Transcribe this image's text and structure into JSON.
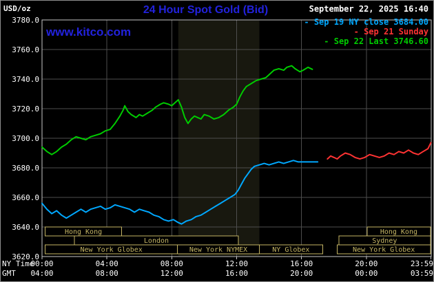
{
  "header": {
    "unit_label": "USD/oz",
    "title": "24 Hour Spot Gold (Bid)",
    "datetime": "September 22, 2025 16:40",
    "watermark": "www.kitco.com"
  },
  "legend": [
    {
      "marker": "-",
      "label": "Sep 19 NY close 3684.00",
      "color": "#00a8ff"
    },
    {
      "marker": "-",
      "label": "Sep 21 Sunday",
      "color": "#ff3333"
    },
    {
      "marker": "-",
      "label": "Sep 22 Last 3746.60",
      "color": "#00cc00"
    }
  ],
  "colors": {
    "background": "#000000",
    "title": "#2222dd",
    "watermark": "#2222dd",
    "grid": "#4e4e4e",
    "plot_border": "#c8c8c8",
    "axis_text": "#ffffff",
    "session_box": "#c6b665",
    "shaded_band": "#18180f"
  },
  "sessions": {
    "rows": [
      [
        {
          "label": "Hong Kong",
          "start": 0.2,
          "end": 4.9
        },
        {
          "label": "Hong Kong",
          "start": 20.05,
          "end": 23.95
        }
      ],
      [
        {
          "label": "London",
          "start": 2.0,
          "end": 12.1
        },
        {
          "label": "Sydney",
          "start": 18.3,
          "end": 23.95
        }
      ],
      [
        {
          "label": "New York Globex",
          "start": 0.2,
          "end": 8.35
        },
        {
          "label": "New York NYMEX",
          "start": 8.35,
          "end": 13.4
        },
        {
          "label": "NY Globex",
          "start": 13.4,
          "end": 17.3
        },
        {
          "label": "New York Globex",
          "start": 18.2,
          "end": 23.95
        }
      ]
    ]
  },
  "chart_data": {
    "type": "line",
    "title": "24 Hour Spot Gold (Bid)",
    "ylabel": "USD/oz",
    "ylim": [
      3620,
      3780
    ],
    "xlim_hours": [
      0,
      24
    ],
    "grid": true,
    "y_ticks": [
      3780,
      3760,
      3740,
      3720,
      3700,
      3680,
      3660,
      3640,
      3620
    ],
    "shaded_band_hours": [
      8.4,
      13.4
    ],
    "x_axis": {
      "ny_label": "NY Time",
      "gmt_label": "GMT",
      "tick_hours": [
        0,
        4,
        8,
        12,
        16,
        20,
        23.983
      ],
      "ny_tick_labels": [
        "00:00",
        "04:00",
        "08:00",
        "12:00",
        "16:00",
        "20:00",
        "23:59"
      ],
      "gmt_tick_labels": [
        "04:00",
        "08:00",
        "12:00",
        "16:00",
        "20:00",
        "00:00",
        "03:59"
      ]
    },
    "series": [
      {
        "id": "sep19",
        "name": "Sep 19 NY close 3684.00",
        "color": "#00a8ff",
        "points": [
          [
            0,
            3656
          ],
          [
            0.3,
            3652
          ],
          [
            0.6,
            3649
          ],
          [
            0.9,
            3651
          ],
          [
            1.2,
            3648
          ],
          [
            1.5,
            3646
          ],
          [
            1.8,
            3648
          ],
          [
            2.1,
            3650
          ],
          [
            2.4,
            3652
          ],
          [
            2.7,
            3650
          ],
          [
            3,
            3652
          ],
          [
            3.3,
            3653
          ],
          [
            3.6,
            3654
          ],
          [
            3.9,
            3652
          ],
          [
            4.2,
            3653
          ],
          [
            4.5,
            3655
          ],
          [
            4.8,
            3654
          ],
          [
            5.1,
            3653
          ],
          [
            5.4,
            3652
          ],
          [
            5.7,
            3650
          ],
          [
            6,
            3652
          ],
          [
            6.3,
            3651
          ],
          [
            6.6,
            3650
          ],
          [
            6.9,
            3648
          ],
          [
            7.2,
            3647
          ],
          [
            7.5,
            3645
          ],
          [
            7.8,
            3644
          ],
          [
            8.1,
            3645
          ],
          [
            8.4,
            3643
          ],
          [
            8.6,
            3642
          ],
          [
            8.9,
            3644
          ],
          [
            9.2,
            3645
          ],
          [
            9.5,
            3647
          ],
          [
            9.8,
            3648
          ],
          [
            10.1,
            3650
          ],
          [
            10.4,
            3652
          ],
          [
            10.7,
            3654
          ],
          [
            11,
            3656
          ],
          [
            11.3,
            3658
          ],
          [
            11.6,
            3660
          ],
          [
            11.9,
            3662
          ],
          [
            12.1,
            3665
          ],
          [
            12.3,
            3669
          ],
          [
            12.5,
            3673
          ],
          [
            12.7,
            3676
          ],
          [
            12.9,
            3679
          ],
          [
            13.1,
            3681
          ],
          [
            13.4,
            3682
          ],
          [
            13.7,
            3683
          ],
          [
            14,
            3682
          ],
          [
            14.3,
            3683
          ],
          [
            14.6,
            3684
          ],
          [
            14.9,
            3683
          ],
          [
            15.2,
            3684
          ],
          [
            15.5,
            3685
          ],
          [
            15.8,
            3684
          ],
          [
            16.1,
            3684
          ],
          [
            16.5,
            3684
          ],
          [
            17,
            3684
          ]
        ]
      },
      {
        "id": "sep21",
        "name": "Sep 21 Sunday",
        "color": "#ff3333",
        "points": [
          [
            17.6,
            3686
          ],
          [
            17.8,
            3688
          ],
          [
            18,
            3687
          ],
          [
            18.2,
            3686
          ],
          [
            18.4,
            3688
          ],
          [
            18.7,
            3690
          ],
          [
            19,
            3689
          ],
          [
            19.3,
            3687
          ],
          [
            19.6,
            3686
          ],
          [
            19.9,
            3687
          ],
          [
            20.2,
            3689
          ],
          [
            20.5,
            3688
          ],
          [
            20.8,
            3687
          ],
          [
            21.1,
            3688
          ],
          [
            21.4,
            3690
          ],
          [
            21.7,
            3689
          ],
          [
            22,
            3691
          ],
          [
            22.3,
            3690
          ],
          [
            22.6,
            3692
          ],
          [
            22.9,
            3690
          ],
          [
            23.2,
            3689
          ],
          [
            23.5,
            3691
          ],
          [
            23.8,
            3693
          ],
          [
            23.98,
            3697
          ]
        ]
      },
      {
        "id": "sep22",
        "name": "Sep 22 Last 3746.60",
        "color": "#00cc00",
        "points": [
          [
            0,
            3694
          ],
          [
            0.3,
            3691
          ],
          [
            0.6,
            3689
          ],
          [
            0.9,
            3691
          ],
          [
            1.2,
            3694
          ],
          [
            1.5,
            3696
          ],
          [
            1.8,
            3699
          ],
          [
            2.1,
            3701
          ],
          [
            2.4,
            3700
          ],
          [
            2.7,
            3699
          ],
          [
            3,
            3701
          ],
          [
            3.3,
            3702
          ],
          [
            3.6,
            3703
          ],
          [
            3.9,
            3705
          ],
          [
            4.2,
            3706
          ],
          [
            4.5,
            3710
          ],
          [
            4.8,
            3715
          ],
          [
            5,
            3719
          ],
          [
            5.1,
            3722
          ],
          [
            5.3,
            3718
          ],
          [
            5.5,
            3716
          ],
          [
            5.8,
            3714
          ],
          [
            6,
            3716
          ],
          [
            6.2,
            3715
          ],
          [
            6.5,
            3717
          ],
          [
            6.8,
            3719
          ],
          [
            7,
            3721
          ],
          [
            7.3,
            3723
          ],
          [
            7.5,
            3724
          ],
          [
            7.8,
            3723
          ],
          [
            8,
            3722
          ],
          [
            8.2,
            3724
          ],
          [
            8.4,
            3726
          ],
          [
            8.6,
            3721
          ],
          [
            8.8,
            3714
          ],
          [
            9,
            3710
          ],
          [
            9.2,
            3713
          ],
          [
            9.4,
            3715
          ],
          [
            9.6,
            3714
          ],
          [
            9.8,
            3713
          ],
          [
            10,
            3716
          ],
          [
            10.3,
            3715
          ],
          [
            10.6,
            3713
          ],
          [
            10.9,
            3714
          ],
          [
            11.2,
            3716
          ],
          [
            11.5,
            3719
          ],
          [
            11.8,
            3721
          ],
          [
            12,
            3723
          ],
          [
            12.2,
            3728
          ],
          [
            12.4,
            3732
          ],
          [
            12.6,
            3735
          ],
          [
            12.9,
            3737
          ],
          [
            13.2,
            3739
          ],
          [
            13.5,
            3740
          ],
          [
            13.8,
            3741
          ],
          [
            14,
            3743
          ],
          [
            14.3,
            3746
          ],
          [
            14.6,
            3747
          ],
          [
            14.9,
            3746
          ],
          [
            15.1,
            3748
          ],
          [
            15.4,
            3749
          ],
          [
            15.6,
            3747
          ],
          [
            15.9,
            3745
          ],
          [
            16.1,
            3746
          ],
          [
            16.4,
            3748
          ],
          [
            16.67,
            3746.6
          ]
        ]
      }
    ]
  }
}
